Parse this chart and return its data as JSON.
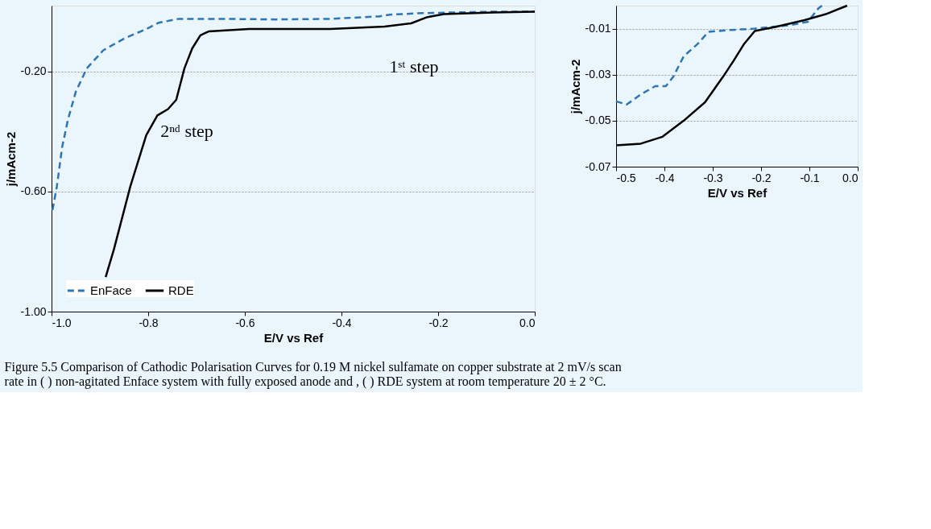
{
  "chart_data": [
    {
      "type": "line",
      "xlabel": "E/V vs Ref",
      "ylabel": "j/mAcm-2",
      "xlim": [
        -1.0,
        0.0
      ],
      "ylim": [
        -1.0,
        0.02
      ],
      "xticks": [
        {
          "value": -1.0,
          "label": "-1.0"
        },
        -0.8,
        -0.6,
        -0.4,
        -0.2,
        {
          "value": 0.0,
          "label": "0.0"
        }
      ],
      "yticks": [
        {
          "value": -1.0,
          "label": "-1.00"
        },
        {
          "value": -0.6,
          "label": "-0.60"
        },
        {
          "value": -0.2,
          "label": "-0.20"
        }
      ],
      "grid": "y",
      "legend": "bottom left",
      "series": [
        {
          "name": "EnFace",
          "color": "#2e75b6",
          "line_style": "dashed",
          "x": [
            -0.998,
            -0.989,
            -0.978,
            -0.966,
            -0.95,
            -0.927,
            -0.893,
            -0.849,
            -0.804,
            -0.778,
            -0.737,
            -0.647,
            -0.535,
            -0.424,
            -0.323,
            -0.3,
            -0.233,
            -0.086,
            0.0
          ],
          "values": [
            -0.661,
            -0.583,
            -0.451,
            -0.36,
            -0.268,
            -0.189,
            -0.129,
            -0.089,
            -0.058,
            -0.037,
            -0.024,
            -0.024,
            -0.026,
            -0.024,
            -0.016,
            -0.01,
            -0.005,
            0.0,
            0.0
          ]
        },
        {
          "name": "RDE",
          "color": "#000000",
          "line_style": "solid",
          "x": [
            -0.888,
            -0.871,
            -0.837,
            -0.804,
            -0.781,
            -0.759,
            -0.742,
            -0.725,
            -0.709,
            -0.692,
            -0.675,
            -0.591,
            -0.424,
            -0.311,
            -0.256,
            -0.222,
            -0.188,
            -0.086,
            0.0
          ],
          "values": [
            -0.885,
            -0.793,
            -0.583,
            -0.412,
            -0.346,
            -0.325,
            -0.294,
            -0.189,
            -0.123,
            -0.079,
            -0.066,
            -0.058,
            -0.058,
            -0.05,
            -0.039,
            -0.018,
            -0.008,
            -0.003,
            0.0
          ]
        }
      ],
      "annotations": [
        "1ˢᵗ step",
        "2ⁿᵈ step",
        "Figure 5.5 Comparison of Cathodic Polarisation Curves for 0.19 M nickel sulfamate on copper substrate at 2 mV/s scan rate in ( ) non-agitated Enface system with fully exposed anode and , ( ) RDE system at room temperature 20 ± 2 °C."
      ]
    },
    {
      "type": "line",
      "xlabel": "E/V vs Ref",
      "ylabel": "j/mAcm-2",
      "xlim": [
        -0.5,
        0.0
      ],
      "ylim": [
        -0.07,
        0.0
      ],
      "xticks": [
        {
          "value": -0.5,
          "label": "-0.5"
        },
        -0.4,
        -0.3,
        -0.2,
        -0.1,
        {
          "value": 0.0,
          "label": "0.0"
        }
      ],
      "yticks": [
        -0.07,
        -0.05,
        -0.03,
        -0.01
      ],
      "grid": "y",
      "series": [
        {
          "color": "#2e75b6",
          "line_style": "dashed",
          "x": [
            -0.5,
            -0.478,
            -0.449,
            -0.419,
            -0.397,
            -0.382,
            -0.36,
            -0.331,
            -0.309,
            -0.272,
            -0.213,
            -0.14,
            -0.103,
            -0.081,
            -0.074
          ],
          "values": [
            -0.0416,
            -0.043,
            -0.0386,
            -0.035,
            -0.035,
            -0.031,
            -0.022,
            -0.0166,
            -0.0114,
            -0.0107,
            -0.01,
            -0.0085,
            -0.007,
            -0.0011,
            0.0
          ]
        },
        {
          "color": "#000000",
          "line_style": "solid",
          "x": [
            -0.5,
            -0.449,
            -0.404,
            -0.36,
            -0.316,
            -0.279,
            -0.257,
            -0.235,
            -0.213,
            -0.169,
            -0.11,
            -0.066,
            -0.022
          ],
          "values": [
            -0.0607,
            -0.06,
            -0.057,
            -0.05,
            -0.042,
            -0.031,
            -0.024,
            -0.0166,
            -0.011,
            -0.0092,
            -0.0063,
            -0.0037,
            0.0
          ]
        }
      ]
    }
  ]
}
